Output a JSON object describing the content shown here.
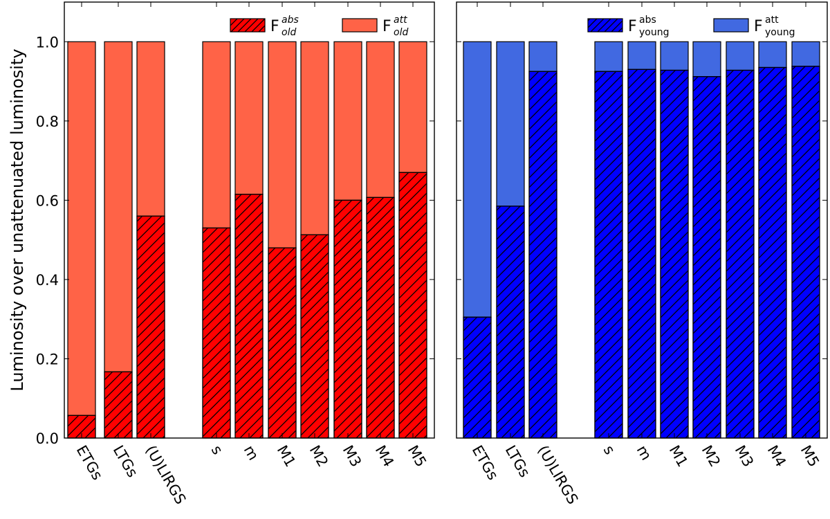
{
  "chart_data": [
    {
      "type": "bar",
      "stacked": true,
      "ylabel": "Luminosity over unattenuated luminosity",
      "ylim": [
        0,
        1.1
      ],
      "yticks": [
        "0.0",
        "0.2",
        "0.4",
        "0.6",
        "0.8",
        "1.0"
      ],
      "categories": [
        "ETGs",
        "LTGs",
        "(U)LIRGS",
        "s",
        "m",
        "M1",
        "M2",
        "M3",
        "M4",
        "M5"
      ],
      "grid": false,
      "legend_position": "top-right",
      "series": [
        {
          "name": "F_old^abs",
          "legend_main": "F",
          "legend_sup": "abs",
          "legend_sub": "old",
          "color": "#ff0000",
          "hatch": true,
          "values": [
            0.057,
            0.167,
            0.56,
            0.53,
            0.615,
            0.48,
            0.513,
            0.6,
            0.607,
            0.67
          ]
        },
        {
          "name": "F_old^att",
          "legend_main": "F",
          "legend_sup": "att",
          "legend_sub": "old",
          "color": "#ff6347",
          "hatch": false,
          "values": [
            0.943,
            0.833,
            0.44,
            0.47,
            0.385,
            0.52,
            0.487,
            0.4,
            0.393,
            0.33
          ]
        }
      ]
    },
    {
      "type": "bar",
      "stacked": true,
      "ylim": [
        0,
        1.1
      ],
      "categories": [
        "ETGs",
        "LTGs",
        "(U)LIRGS",
        "s",
        "m",
        "M1",
        "M2",
        "M3",
        "M4",
        "M5"
      ],
      "grid": false,
      "legend_position": "top-right",
      "series": [
        {
          "name": "F_young^abs",
          "legend_main": "F",
          "legend_sup": "abs",
          "legend_sub": "young",
          "color": "#0000ff",
          "hatch": true,
          "values": [
            0.305,
            0.585,
            0.925,
            0.925,
            0.93,
            0.928,
            0.912,
            0.928,
            0.935,
            0.938
          ]
        },
        {
          "name": "F_young^att",
          "legend_main": "F",
          "legend_sup": "att",
          "legend_sub": "young",
          "color": "#4169e1",
          "hatch": false,
          "values": [
            0.695,
            0.415,
            0.075,
            0.075,
            0.07,
            0.072,
            0.088,
            0.072,
            0.065,
            0.062
          ]
        }
      ]
    }
  ]
}
